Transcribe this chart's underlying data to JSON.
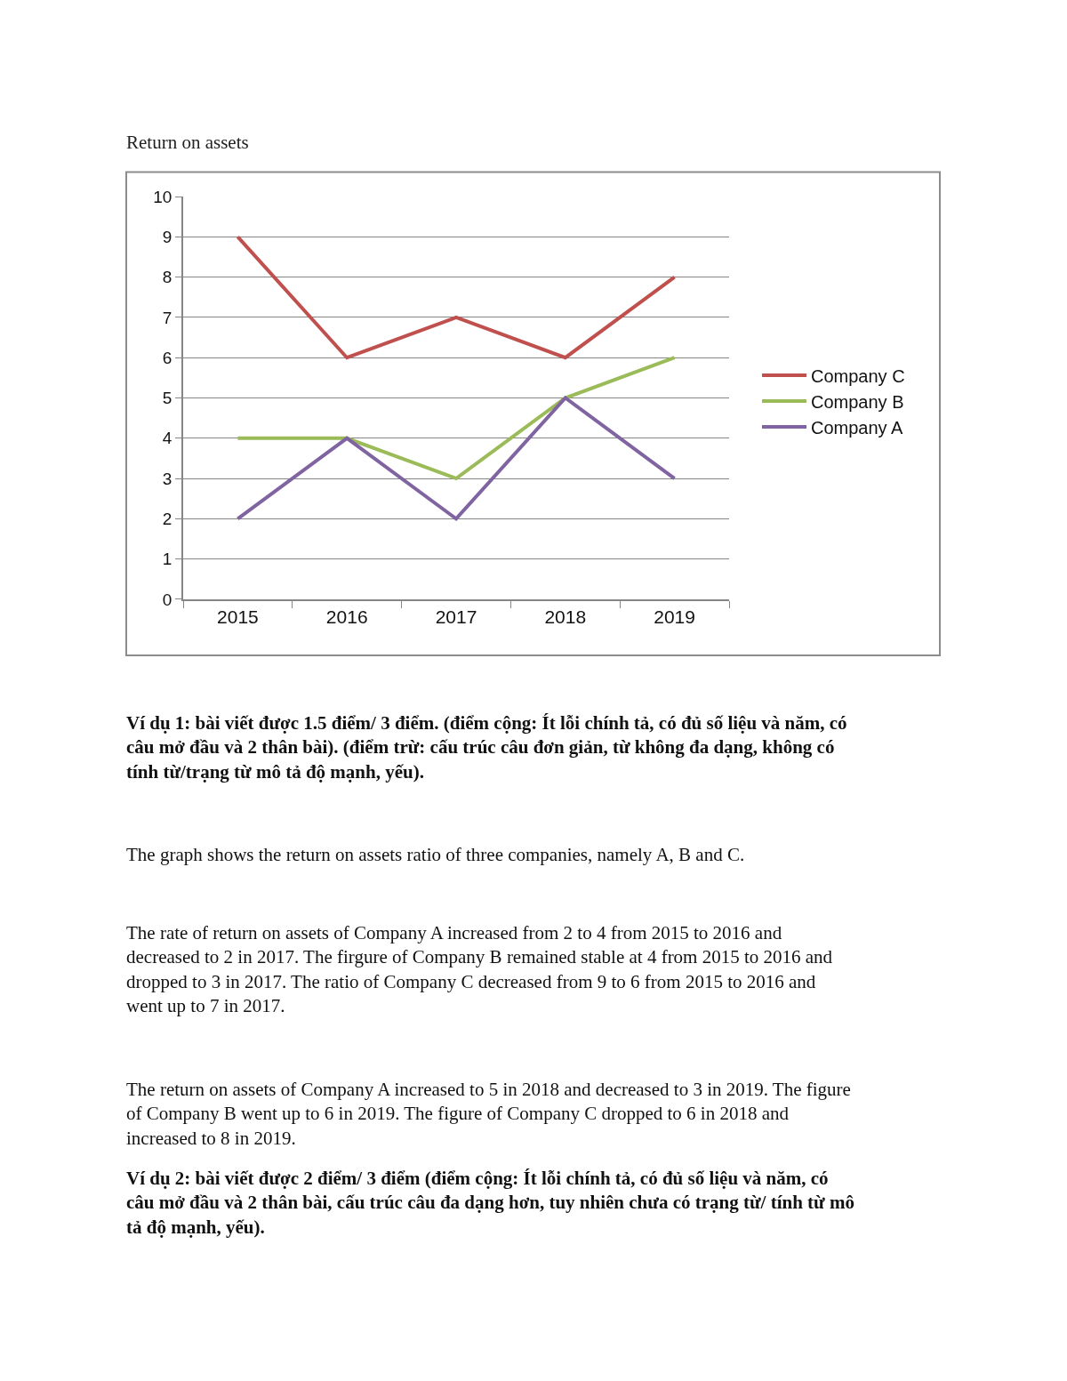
{
  "chart_data": {
    "type": "line",
    "title": "Return on assets",
    "categories": [
      "2015",
      "2016",
      "2017",
      "2018",
      "2019"
    ],
    "series": [
      {
        "name": "Company C",
        "color": "#c0504d",
        "values": [
          9,
          6,
          7,
          6,
          8
        ]
      },
      {
        "name": "Company B",
        "color": "#9bbb59",
        "values": [
          4,
          4,
          3,
          5,
          6
        ]
      },
      {
        "name": "Company A",
        "color": "#8064a2",
        "values": [
          2,
          4,
          2,
          5,
          3
        ]
      }
    ],
    "ylim": [
      0,
      10
    ],
    "yticks": [
      0,
      1,
      2,
      3,
      4,
      5,
      6,
      7,
      8,
      9,
      10
    ],
    "grid": "y",
    "legend": "right",
    "marker": "none",
    "line_style": "solid",
    "annotations": [
      "Ví dụ 1: bài viết được 1.5 điểm/ 3 điểm. (điểm cộng: Ít lỗi chính tả, có đủ số liệu và năm, có\ncâu mở đầu và 2 thân bài). (điểm trừ: cấu trúc câu đơn giản, từ không đa dạng, không có\ntính từ/trạng từ mô tả độ mạnh, yếu).",
      "The graph shows the return on assets ratio of three companies, namely A, B and C.",
      "The rate of return on assets of Company A increased from 2 to 4 from 2015 to 2016 and\ndecreased to 2 in 2017. The firgure of Company B remained stable at 4 from 2015 to 2016 and\ndropped to 3 in 2017. The ratio of Company C decreased from 9 to 6 from 2015 to 2016 and\nwent up to 7 in 2017.",
      "The return on assets of Company A increased to 5 in 2018 and decreased to 3 in 2019. The figure\nof Company B went up to 6 in 2019. The figure of Company C dropped to 6 in 2018 and\nincreased to 8 in 2019.",
      "Ví dụ 2: bài viết được 2 điểm/ 3 điểm (điểm cộng: Ít lỗi chính tả, có đủ số liệu và năm, có\ncâu mở đầu và 2 thân bài, cấu trúc câu đa dạng hơn, tuy nhiên chưa có trạng từ/ tính từ mô\ntả độ mạnh, yếu)."
    ]
  }
}
